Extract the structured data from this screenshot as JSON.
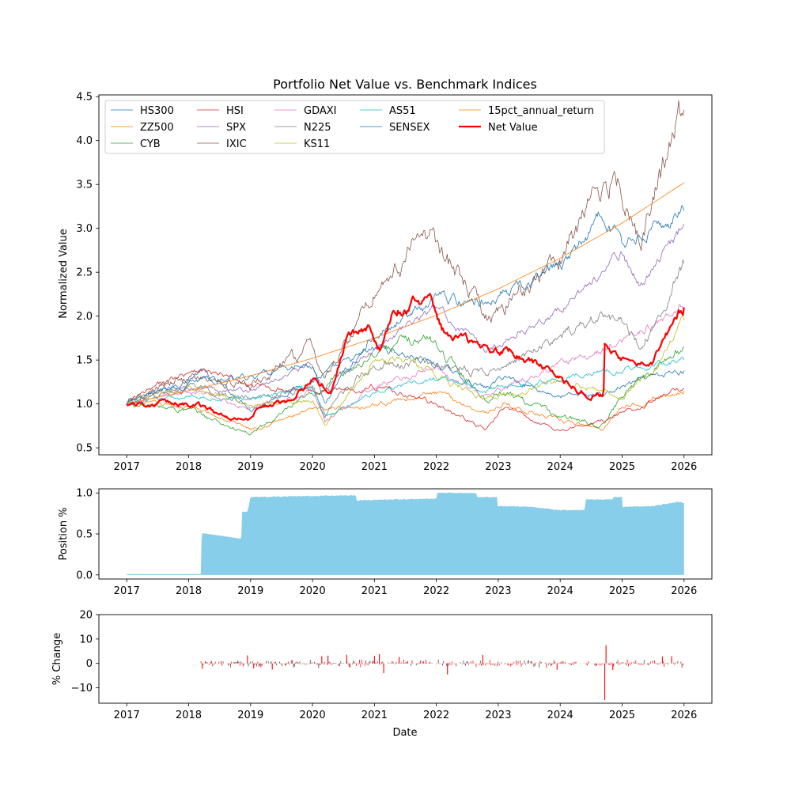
{
  "chart_data": [
    {
      "type": "line",
      "title": "Portfolio Net Value vs. Benchmark Indices",
      "xlabel": "",
      "ylabel": "Normalized Value",
      "xlim": [
        2016.55,
        2026.45
      ],
      "ylim": [
        0.42,
        4.52
      ],
      "xticks": [
        2017,
        2018,
        2019,
        2020,
        2021,
        2022,
        2023,
        2024,
        2025,
        2026
      ],
      "xtick_labels": [
        "2017",
        "2018",
        "2019",
        "2020",
        "2021",
        "2022",
        "2023",
        "2024",
        "2025",
        "2026"
      ],
      "yticks": [
        0.5,
        1.0,
        1.5,
        2.0,
        2.5,
        3.0,
        3.5,
        4.0,
        4.5
      ],
      "ytick_labels": [
        "0.5",
        "1.0",
        "1.5",
        "2.0",
        "2.5",
        "3.0",
        "3.5",
        "4.0",
        "4.5"
      ],
      "legend_location": "top-left",
      "series": [
        {
          "name": "HS300",
          "color": "#1f77b4",
          "width": 0.8,
          "noise": 0.012,
          "x": [
            2017,
            2018,
            2018.2,
            2019,
            2020,
            2021.1,
            2022,
            2022.8,
            2023.1,
            2024,
            2024.8,
            2025,
            2026
          ],
          "y": [
            1.0,
            1.28,
            1.38,
            0.95,
            1.27,
            1.65,
            1.45,
            1.17,
            1.32,
            1.08,
            1.12,
            1.2,
            1.38
          ]
        },
        {
          "name": "ZZ500",
          "color": "#ff7f0e",
          "width": 0.8,
          "noise": 0.012,
          "x": [
            2017,
            2018,
            2019,
            2020,
            2021,
            2022,
            2022.8,
            2023.1,
            2024,
            2024.7,
            2025,
            2026
          ],
          "y": [
            1.0,
            0.97,
            0.72,
            0.92,
            1.0,
            1.12,
            0.9,
            1.0,
            0.8,
            0.72,
            0.98,
            1.15
          ]
        },
        {
          "name": "CYB",
          "color": "#2ca02c",
          "width": 0.8,
          "noise": 0.015,
          "x": [
            2017,
            2018,
            2019,
            2020,
            2021.1,
            2021.9,
            2022.8,
            2023.1,
            2024,
            2024.7,
            2025,
            2025.8,
            2026
          ],
          "y": [
            1.0,
            0.93,
            0.65,
            1.1,
            1.65,
            1.75,
            1.05,
            1.15,
            0.85,
            0.75,
            1.1,
            1.55,
            1.65
          ]
        },
        {
          "name": "HSI",
          "color": "#d62728",
          "width": 0.8,
          "noise": 0.012,
          "x": [
            2017,
            2018.1,
            2019,
            2020,
            2021.1,
            2022,
            2022.8,
            2023.1,
            2024,
            2024.7,
            2025,
            2026
          ],
          "y": [
            1.0,
            1.42,
            1.2,
            1.15,
            1.2,
            1.0,
            0.7,
            0.95,
            0.7,
            0.8,
            0.9,
            1.18
          ]
        },
        {
          "name": "SPX",
          "color": "#9467bd",
          "width": 0.8,
          "noise": 0.01,
          "x": [
            2017,
            2018,
            2019,
            2020,
            2020.2,
            2021,
            2022,
            2022.8,
            2024,
            2025,
            2025.3,
            2026
          ],
          "y": [
            1.0,
            1.2,
            1.15,
            1.45,
            1.15,
            1.65,
            2.1,
            1.6,
            2.08,
            2.7,
            2.35,
            3.05
          ]
        },
        {
          "name": "IXIC",
          "color": "#8c564b",
          "width": 0.8,
          "noise": 0.02,
          "x": [
            2017,
            2018,
            2019,
            2020,
            2020.2,
            2021,
            2021.9,
            2022.8,
            2024,
            2024.9,
            2025.3,
            2026
          ],
          "y": [
            1.0,
            1.3,
            1.2,
            1.65,
            1.25,
            2.3,
            2.95,
            1.95,
            2.7,
            3.65,
            2.9,
            4.35
          ]
        },
        {
          "name": "GDAXI",
          "color": "#e377c2",
          "width": 0.8,
          "noise": 0.012,
          "x": [
            2017,
            2018,
            2019,
            2020,
            2020.2,
            2021,
            2022,
            2022.7,
            2024,
            2025,
            2026
          ],
          "y": [
            1.0,
            1.15,
            0.95,
            1.15,
            0.8,
            1.2,
            1.4,
            1.1,
            1.45,
            1.7,
            2.1
          ]
        },
        {
          "name": "N225",
          "color": "#7f7f7f",
          "width": 0.8,
          "noise": 0.015,
          "x": [
            2017,
            2018,
            2019,
            2020,
            2020.2,
            2021,
            2022,
            2022.8,
            2024,
            2024.6,
            2025,
            2025.3,
            2026
          ],
          "y": [
            1.0,
            1.2,
            1.05,
            1.2,
            0.9,
            1.45,
            1.45,
            1.35,
            1.75,
            2.0,
            1.95,
            1.65,
            2.6
          ]
        },
        {
          "name": "KS11",
          "color": "#bcbd22",
          "width": 0.8,
          "noise": 0.012,
          "x": [
            2017,
            2018,
            2019,
            2020,
            2020.2,
            2021,
            2021.5,
            2022.8,
            2024,
            2025,
            2025.5,
            2026
          ],
          "y": [
            1.0,
            1.2,
            1.0,
            1.05,
            0.75,
            1.5,
            1.5,
            1.05,
            1.25,
            1.1,
            1.4,
            1.95
          ]
        },
        {
          "name": "AS51",
          "color": "#17becf",
          "width": 0.8,
          "noise": 0.01,
          "x": [
            2017,
            2018,
            2019,
            2020,
            2020.2,
            2021,
            2022,
            2022.8,
            2024,
            2025,
            2026
          ],
          "y": [
            1.0,
            1.08,
            1.05,
            1.2,
            0.85,
            1.15,
            1.3,
            1.15,
            1.3,
            1.4,
            1.5
          ]
        },
        {
          "name": "SENSEX",
          "color": "#1f77b4",
          "width": 0.8,
          "noise": 0.012,
          "x": [
            2017,
            2018,
            2019,
            2020,
            2020.2,
            2021,
            2022,
            2022.8,
            2024,
            2024.7,
            2025,
            2026
          ],
          "y": [
            1.0,
            1.25,
            1.3,
            1.45,
            1.0,
            1.8,
            2.2,
            2.15,
            2.6,
            3.15,
            2.8,
            3.2
          ]
        },
        {
          "name": "15pct_annual_return",
          "color": "#ff7f0e",
          "width": 0.8,
          "noise": 0,
          "x": [
            2017,
            2018,
            2019,
            2020,
            2021,
            2022,
            2023,
            2024,
            2025,
            2026
          ],
          "y": [
            1.0,
            1.15,
            1.32,
            1.52,
            1.75,
            2.01,
            2.31,
            2.66,
            3.06,
            3.52
          ]
        },
        {
          "name": "Net Value",
          "color": "#ff0000",
          "width": 2.2,
          "noise": 0.012,
          "x": [
            2017,
            2018.15,
            2018.5,
            2018.95,
            2019.1,
            2019.6,
            2020,
            2020.3,
            2020.55,
            2020.9,
            2021.1,
            2021.3,
            2021.6,
            2021.9,
            2022.1,
            2022.5,
            2022.8,
            2023.2,
            2023.8,
            2024.3,
            2024.7,
            2024.72,
            2025,
            2025.2,
            2025.5,
            2025.7,
            2025.9,
            2026
          ],
          "y": [
            1.0,
            1.0,
            0.88,
            0.82,
            0.95,
            1.05,
            1.3,
            1.15,
            1.78,
            1.85,
            1.6,
            2.05,
            2.15,
            2.18,
            1.85,
            1.7,
            1.6,
            1.58,
            1.4,
            1.15,
            1.08,
            1.68,
            1.52,
            1.45,
            1.48,
            1.75,
            2.05,
            2.1
          ]
        }
      ],
      "legend_entries": [
        "HS300",
        "ZZ500",
        "CYB",
        "HSI",
        "SPX",
        "IXIC",
        "GDAXI",
        "N225",
        "KS11",
        "AS51",
        "SENSEX",
        "15pct_annual_return",
        "Net Value"
      ]
    },
    {
      "type": "area",
      "title": "",
      "xlabel": "",
      "ylabel": "Position %",
      "xlim": [
        2016.55,
        2026.45
      ],
      "ylim": [
        -0.05,
        1.05
      ],
      "xticks": [
        2017,
        2018,
        2019,
        2020,
        2021,
        2022,
        2023,
        2024,
        2025,
        2026
      ],
      "xtick_labels": [
        "2017",
        "2018",
        "2019",
        "2020",
        "2021",
        "2022",
        "2023",
        "2024",
        "2025",
        "2026"
      ],
      "yticks": [
        0.0,
        0.5,
        1.0
      ],
      "ytick_labels": [
        "0.0",
        "0.5",
        "1.0"
      ],
      "color": "#87ceeb",
      "x": [
        2017,
        2018.2,
        2018.21,
        2018.5,
        2018.85,
        2018.86,
        2018.95,
        2019.0,
        2020.7,
        2020.71,
        2022.0,
        2022.01,
        2022.65,
        2022.66,
        2022.98,
        2022.99,
        2023.5,
        2024.0,
        2024.4,
        2024.41,
        2024.85,
        2024.86,
        2025.0,
        2025.01,
        2025.5,
        2025.9,
        2026
      ],
      "y": [
        0.01,
        0.01,
        0.51,
        0.48,
        0.44,
        0.77,
        0.77,
        0.95,
        0.97,
        0.91,
        0.93,
        1.0,
        1.0,
        0.95,
        0.95,
        0.84,
        0.83,
        0.79,
        0.79,
        0.92,
        0.92,
        0.95,
        0.95,
        0.83,
        0.84,
        0.89,
        0.88
      ]
    },
    {
      "type": "bar",
      "title": "",
      "xlabel": "Date",
      "ylabel": "% Change",
      "xlim": [
        2016.55,
        2026.45
      ],
      "ylim": [
        -16.3,
        20.0
      ],
      "xticks": [
        2017,
        2018,
        2019,
        2020,
        2021,
        2022,
        2023,
        2024,
        2025,
        2026
      ],
      "xtick_labels": [
        "2017",
        "2018",
        "2019",
        "2020",
        "2021",
        "2022",
        "2023",
        "2024",
        "2025",
        "2026"
      ],
      "yticks": [
        -10,
        0,
        10,
        20
      ],
      "ytick_labels": [
        "−10",
        "0",
        "10",
        "20"
      ],
      "color": "#ff0000",
      "range_start": 2018.2,
      "range_end": 2026,
      "typical_amplitude": 1.4,
      "highlights": [
        {
          "x": 2018.22,
          "y": -2.2
        },
        {
          "x": 2018.95,
          "y": 3.3
        },
        {
          "x": 2019.05,
          "y": -2.0
        },
        {
          "x": 2019.35,
          "y": -2.5
        },
        {
          "x": 2020.15,
          "y": 3.0
        },
        {
          "x": 2020.25,
          "y": 3.2
        },
        {
          "x": 2020.55,
          "y": 3.6
        },
        {
          "x": 2021.0,
          "y": 3.1
        },
        {
          "x": 2021.08,
          "y": 3.8
        },
        {
          "x": 2021.15,
          "y": -4.0
        },
        {
          "x": 2021.4,
          "y": 2.7
        },
        {
          "x": 2022.18,
          "y": -4.5
        },
        {
          "x": 2022.75,
          "y": 3.5
        },
        {
          "x": 2023.95,
          "y": -2.6
        },
        {
          "x": 2024.72,
          "y": -15.0
        },
        {
          "x": 2024.74,
          "y": 7.5
        },
        {
          "x": 2024.85,
          "y": -2.7
        },
        {
          "x": 2025.65,
          "y": 2.8
        },
        {
          "x": 2025.8,
          "y": 3.0
        }
      ]
    }
  ]
}
